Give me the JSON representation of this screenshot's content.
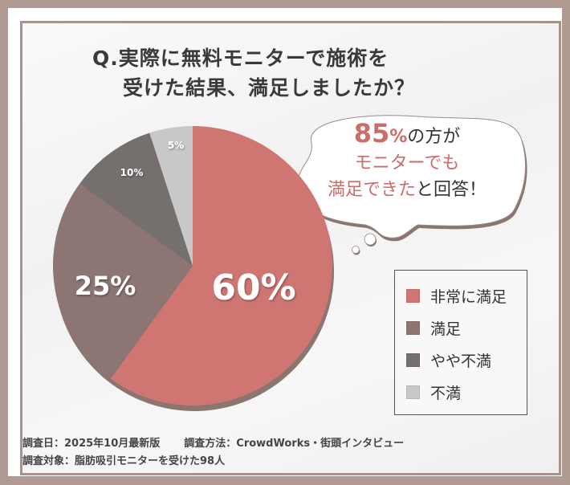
{
  "title": {
    "line1": "Q.実際に無料モニターで施術を",
    "line2": "受けた結果、満足しましたか？"
  },
  "callout": {
    "percent": "85",
    "percent_sign": "%",
    "line1_rest": "の方が",
    "line2": "モニターでも",
    "line3_pink": "満足できた",
    "line3_rest": "と回答！"
  },
  "legend": {
    "items": [
      {
        "label": "非常に満足",
        "color": "#cf7673"
      },
      {
        "label": "満足",
        "color": "#8c7573"
      },
      {
        "label": "やや不満",
        "color": "#756f6e"
      },
      {
        "label": "不満",
        "color": "#c9c8c8"
      }
    ]
  },
  "footer": {
    "date": "調査日：2025年10月最新版",
    "method": "調査方法：CrowdWorks・街頭インタビュー",
    "target": "調査対象：脂肪吸引モニターを受けた98人"
  },
  "chart_data": {
    "type": "pie",
    "title": "Q.実際に無料モニターで施術を受けた結果、満足しましたか？",
    "categories": [
      "非常に満足",
      "満足",
      "やや不満",
      "不満"
    ],
    "values": [
      60,
      25,
      10,
      5
    ],
    "labels": [
      "60%",
      "25%",
      "10%",
      "5%"
    ],
    "colors": [
      "#cf7673",
      "#8c7573",
      "#756f6e",
      "#c9c8c8"
    ],
    "legend_position": "right",
    "annotation": "85%の方がモニターでも満足できたと回答！",
    "sample_size": 98
  }
}
